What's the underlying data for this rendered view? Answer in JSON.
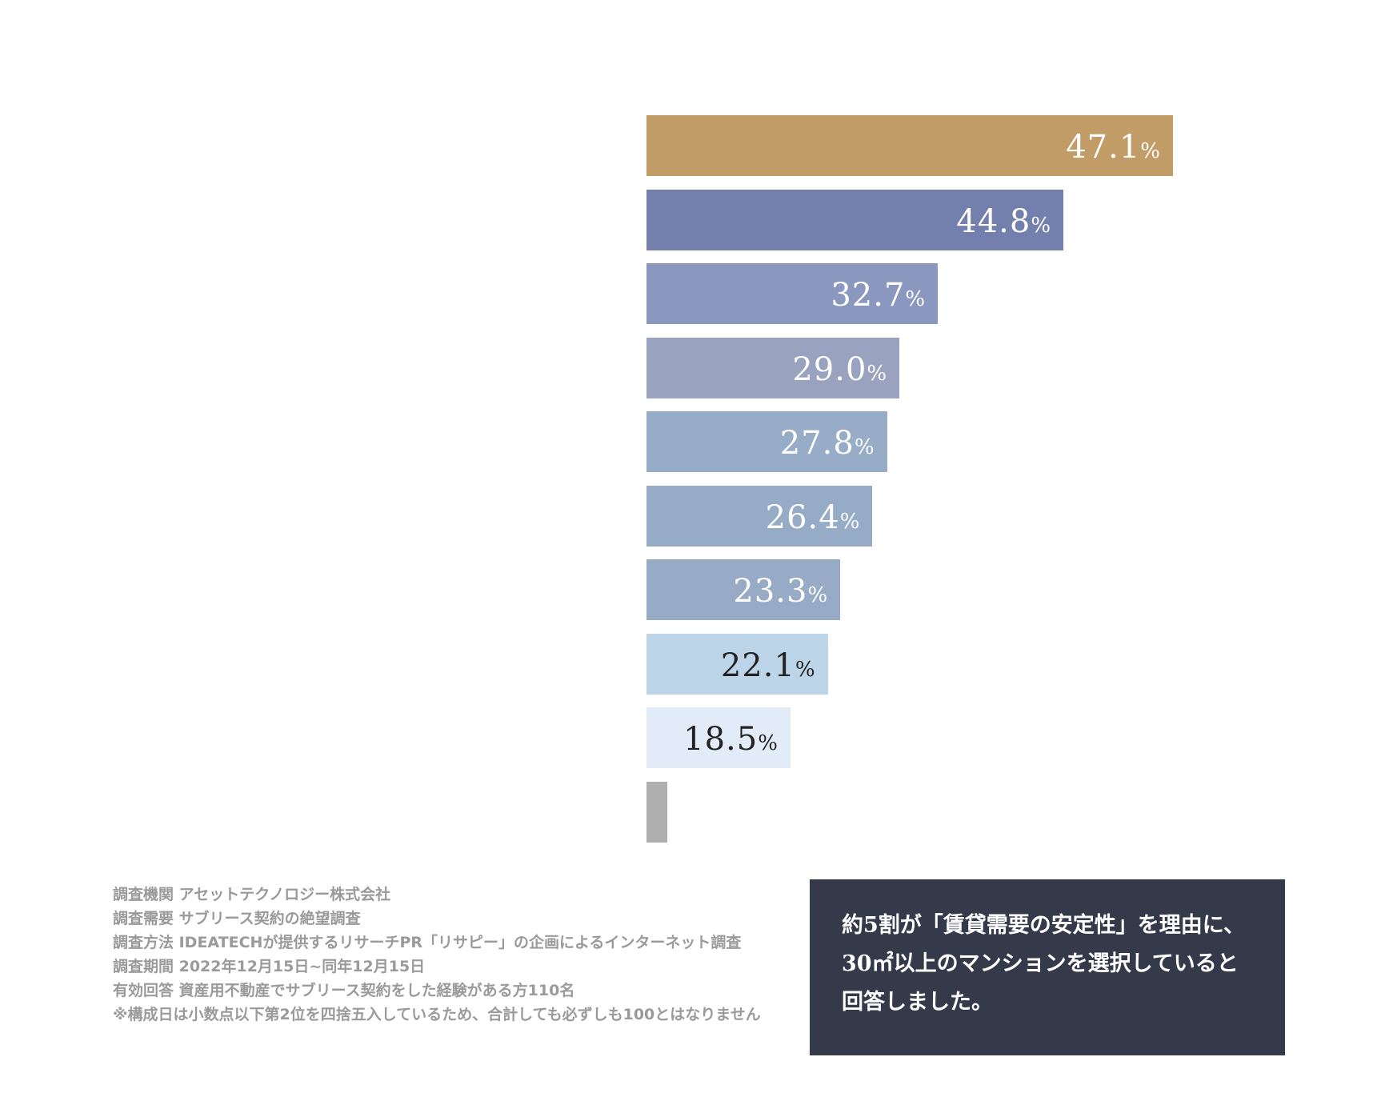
{
  "chart_data": {
    "type": "bar",
    "orientation": "horizontal",
    "unit": "%",
    "values": [
      47.1,
      44.8,
      32.7,
      29.0,
      27.8,
      26.4,
      23.3,
      22.1,
      18.5,
      null
    ],
    "labels": [
      "47.1",
      "44.8",
      "32.7",
      "29.0",
      "27.8",
      "26.4",
      "23.3",
      "22.1",
      "18.5",
      ""
    ],
    "colors": [
      "#c29c66",
      "#737fad",
      "#8a98c0",
      "#99a2bf",
      "#97acc6",
      "#96abc6",
      "#97abc6",
      "#bdd5e8",
      "#e2ecf8",
      "#afafaf"
    ],
    "label_colors": [
      "#ffffff",
      "#ffffff",
      "#ffffff",
      "#ffffff",
      "#ffffff",
      "#ffffff",
      "#ffffff",
      "#222222",
      "#222222",
      "#222222"
    ],
    "grid": false
  },
  "notes": [
    "調査機関 アセットテクノロジー株式会社",
    "調査需要 サブリース契約の絶望調査",
    "調査方法 IDEATECHが提供するリサーチPR「リサピー」の企画によるインターネット調査",
    "調査期間 2022年12月15日~同年12月15日",
    "有効回答 資産用不動産でサブリース契約をした経験がある方110名",
    "※構成日は小数点以下第2位を四捨五入しているため、合計しても必ずしも100とはなりません"
  ],
  "callout": {
    "lines": [
      "約5割が「賃貸需要の安定性」を理由に、",
      "30㎡以上のマンションを選択していると",
      "回答しました。"
    ]
  }
}
